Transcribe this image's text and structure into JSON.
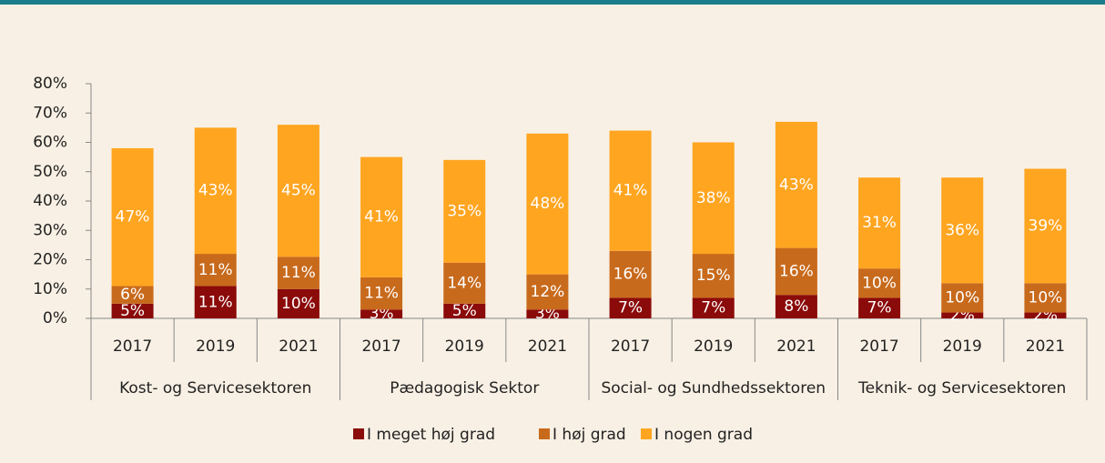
{
  "chart_data": {
    "type": "stacked_bar",
    "categories": [
      "2017",
      "2019",
      "2021",
      "2017",
      "2019",
      "2021",
      "2017",
      "2019",
      "2021",
      "2017",
      "2019",
      "2021"
    ],
    "groups": [
      "Kost- og Servicesektoren",
      "Pædagogisk Sektor",
      "Social- og Sundhedssektoren",
      "Teknik- og Servicesektoren"
    ],
    "series": [
      {
        "name": "I meget høj grad",
        "color": "#8b0a0a",
        "values": [
          5,
          11,
          10,
          3,
          5,
          3,
          7,
          7,
          8,
          7,
          2,
          2
        ],
        "value_labels": [
          "5%",
          "11%",
          "10%",
          "3%",
          "5%",
          "3%",
          "7%",
          "7%",
          "8%",
          "7%",
          "2%",
          "2%"
        ]
      },
      {
        "name": "I høj grad",
        "color": "#c86a1c",
        "values": [
          6,
          11,
          11,
          11,
          14,
          12,
          16,
          15,
          16,
          10,
          10,
          10
        ],
        "value_labels": [
          "6%",
          "11%",
          "11%",
          "11%",
          "14%",
          "12%",
          "16%",
          "15%",
          "16%",
          "10%",
          "10%",
          "10%"
        ]
      },
      {
        "name": "I nogen grad",
        "color": "#ffa520",
        "values": [
          47,
          43,
          45,
          41,
          35,
          48,
          41,
          38,
          43,
          31,
          36,
          39
        ],
        "value_labels": [
          "47%",
          "43%",
          "45%",
          "41%",
          "35%",
          "48%",
          "41%",
          "38%",
          "43%",
          "31%",
          "36%",
          "39%"
        ]
      }
    ],
    "ylim": [
      0,
      80
    ],
    "yticks": [
      {
        "value": 0,
        "label": "0%"
      },
      {
        "value": 10,
        "label": "10%"
      },
      {
        "value": 20,
        "label": "20%"
      },
      {
        "value": 30,
        "label": "30%"
      },
      {
        "value": 40,
        "label": "40%"
      },
      {
        "value": 50,
        "label": "50%"
      },
      {
        "value": 60,
        "label": "60%"
      },
      {
        "value": 70,
        "label": "70%"
      },
      {
        "value": 80,
        "label": "80%"
      }
    ],
    "legend": "bottom"
  }
}
